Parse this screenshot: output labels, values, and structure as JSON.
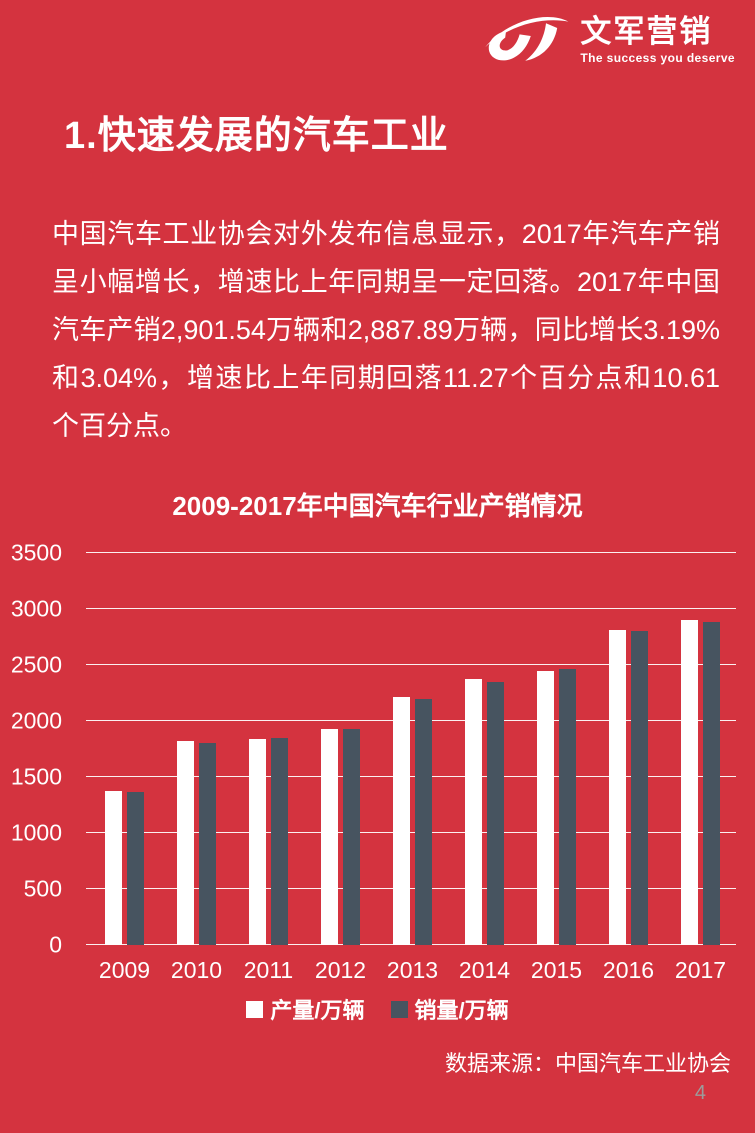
{
  "page": {
    "background_color": "#D4333F",
    "number": "4"
  },
  "logo": {
    "icon": "uj-swoosh-logo",
    "brand_name": "文军营销",
    "tagline": "The success you deserve"
  },
  "heading": {
    "title": "1.快速发展的汽车工业"
  },
  "body": {
    "paragraph": "中国汽车工业协会对外发布信息显示，2017年汽车产销呈小幅增长，增速比上年同期呈一定回落。2017年中国汽车产销2,901.54万辆和2,887.89万辆，同比增长3.19%和3.04%，增速比上年同期回落11.27个百分点和10.61个百分点。"
  },
  "chart_data": {
    "type": "bar",
    "title": "2009-2017年中国汽车行业产销情况",
    "categories": [
      "2009",
      "2010",
      "2011",
      "2012",
      "2013",
      "2014",
      "2015",
      "2016",
      "2017"
    ],
    "series": [
      {
        "name": "产量/万辆",
        "color": "#FFFFFF",
        "values": [
          1379,
          1826,
          1842,
          1927,
          2212,
          2372,
          2450,
          2812,
          2902
        ]
      },
      {
        "name": "销量/万辆",
        "color": "#475460",
        "values": [
          1364,
          1806,
          1851,
          1931,
          2198,
          2349,
          2460,
          2803,
          2888
        ]
      }
    ],
    "xlabel": "",
    "ylabel": "",
    "ylim": [
      0,
      3500
    ],
    "ytick_step": 500,
    "grid": true,
    "legend_position": "bottom"
  },
  "footer": {
    "source": "数据来源：中国汽车工业协会"
  }
}
